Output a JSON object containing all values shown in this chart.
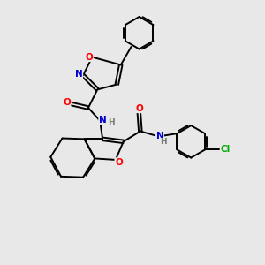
{
  "background_color": "#e8e8e8",
  "bond_color": "#000000",
  "atom_colors": {
    "O": "#ff0000",
    "N": "#0000cc",
    "Cl": "#00aa00",
    "C": "#000000",
    "H": "#777777"
  }
}
